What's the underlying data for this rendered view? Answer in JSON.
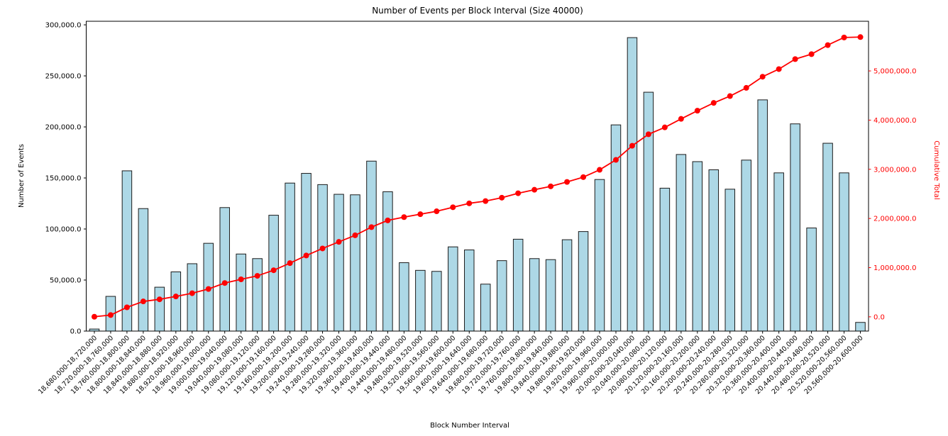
{
  "chart_data": {
    "type": "bar",
    "title": "Number of Events per Block Interval (Size 40000)",
    "xlabel": "Block Number Interval",
    "ylabel_left": "Number of Events",
    "ylabel_right": "Cumulative Total",
    "legend_position": "none",
    "grid": false,
    "categories": [
      "18,680,000-18,720,000",
      "18,720,000-18,760,000",
      "18,760,000-18,800,000",
      "18,800,000-18,840,000",
      "18,840,000-18,880,000",
      "18,880,000-18,920,000",
      "18,920,000-18,960,000",
      "18,960,000-19,000,000",
      "19,000,000-19,040,000",
      "19,040,000-19,080,000",
      "19,080,000-19,120,000",
      "19,120,000-19,160,000",
      "19,160,000-19,200,000",
      "19,200,000-19,240,000",
      "19,240,000-19,280,000",
      "19,280,000-19,320,000",
      "19,320,000-19,360,000",
      "19,360,000-19,400,000",
      "19,400,000-19,440,000",
      "19,440,000-19,480,000",
      "19,480,000-19,520,000",
      "19,520,000-19,560,000",
      "19,560,000-19,600,000",
      "19,600,000-19,640,000",
      "19,640,000-19,680,000",
      "19,680,000-19,720,000",
      "19,720,000-19,760,000",
      "19,760,000-19,800,000",
      "19,800,000-19,840,000",
      "19,840,000-19,880,000",
      "19,880,000-19,920,000",
      "19,920,000-19,960,000",
      "19,960,000-20,000,000",
      "20,000,000-20,040,000",
      "20,040,000-20,080,000",
      "20,080,000-20,120,000",
      "20,120,000-20,160,000",
      "20,160,000-20,200,000",
      "20,200,000-20,240,000",
      "20,240,000-20,280,000",
      "20,280,000-20,320,000",
      "20,320,000-20,360,000",
      "20,360,000-20,400,000",
      "20,400,000-20,440,000",
      "20,440,000-20,480,000",
      "20,480,000-20,520,000",
      "20,520,000-20,560,000",
      "20,560,000-20,600,000"
    ],
    "series": [
      {
        "name": "Number of Events",
        "type": "bar",
        "axis": "left",
        "fill_color": "#ADD8E6",
        "edge_color": "#1c1c1c",
        "values": [
          2000,
          34000,
          157000,
          120000,
          43000,
          58000,
          66000,
          86000,
          121000,
          75500,
          71000,
          113500,
          145000,
          154500,
          143500,
          134000,
          133500,
          166500,
          136500,
          67000,
          59500,
          58500,
          82500,
          79500,
          46000,
          69000,
          90000,
          71000,
          70000,
          89500,
          97500,
          148500,
          202000,
          287500,
          234000,
          140000,
          173000,
          166000,
          158000,
          139000,
          167500,
          226500,
          155000,
          203000,
          101000,
          184000,
          155000,
          8500
        ]
      },
      {
        "name": "Cumulative Total",
        "type": "line",
        "axis": "right",
        "color": "#FF0000",
        "marker": "circle",
        "values": [
          2000,
          36000,
          193000,
          313000,
          356000,
          414000,
          480000,
          566000,
          687000,
          762500,
          833500,
          947000,
          1092000,
          1246500,
          1390000,
          1524000,
          1657500,
          1824000,
          1960500,
          2027500,
          2087000,
          2145500,
          2228000,
          2307500,
          2353500,
          2422500,
          2512500,
          2583500,
          2653500,
          2743000,
          2840500,
          2989000,
          3191000,
          3478500,
          3712500,
          3852500,
          4025500,
          4191500,
          4349500,
          4488500,
          4656000,
          4882500,
          5037500,
          5240500,
          5341500,
          5525500,
          5680500,
          5689000
        ]
      }
    ],
    "left_axis": {
      "range": [
        0,
        303500
      ],
      "tick_values": [
        0,
        50000,
        100000,
        150000,
        200000,
        250000,
        300000
      ],
      "tick_labels": [
        "0.0",
        "50,000.0",
        "100,000.0",
        "150,000.0",
        "200,000.0",
        "250,000.0",
        "300,000.0"
      ],
      "color": "#000000"
    },
    "right_axis": {
      "range": [
        -290000,
        6010000
      ],
      "tick_values": [
        0,
        1000000,
        2000000,
        3000000,
        4000000,
        5000000
      ],
      "tick_labels": [
        "0.0",
        "1,000,000.0",
        "2,000,000.0",
        "3,000,000.0",
        "4,000,000.0",
        "5,000,000.0"
      ],
      "color": "#FF0000"
    },
    "colors": {
      "background": "#ffffff",
      "spine": "#000000",
      "text": "#000000"
    }
  }
}
